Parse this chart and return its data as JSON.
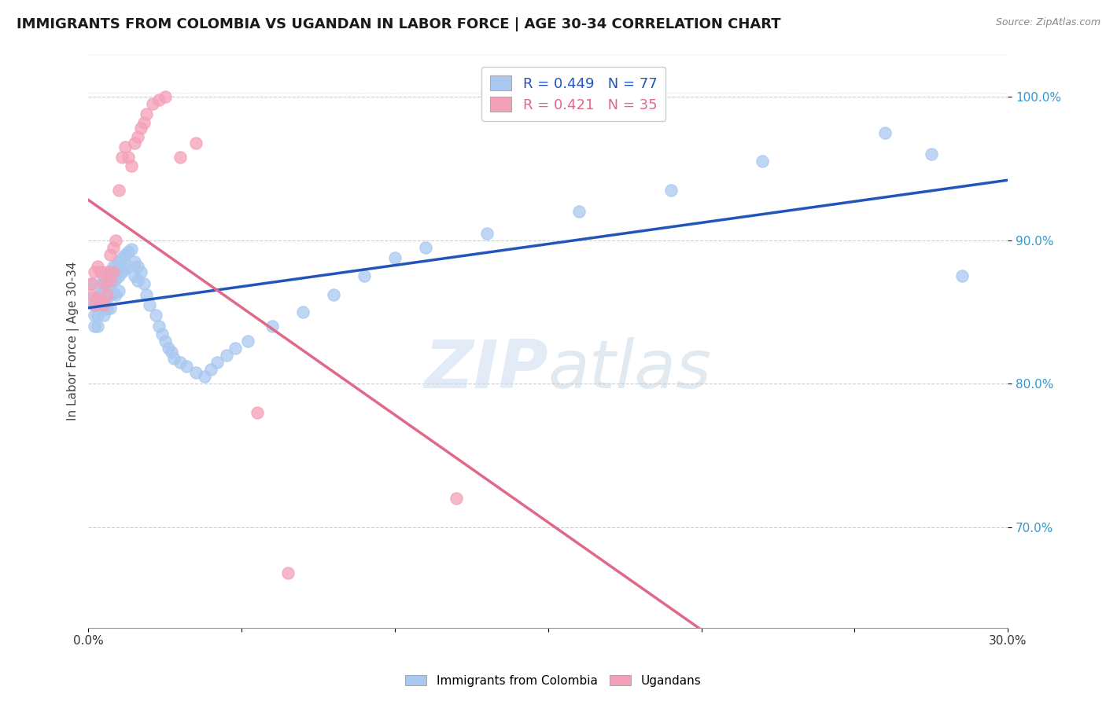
{
  "title": "IMMIGRANTS FROM COLOMBIA VS UGANDAN IN LABOR FORCE | AGE 30-34 CORRELATION CHART",
  "source": "Source: ZipAtlas.com",
  "ylabel": "In Labor Force | Age 30-34",
  "xlim": [
    0.0,
    0.3
  ],
  "ylim": [
    0.63,
    1.03
  ],
  "xticks": [
    0.0,
    0.05,
    0.1,
    0.15,
    0.2,
    0.25,
    0.3
  ],
  "yticks": [
    0.7,
    0.8,
    0.9,
    1.0
  ],
  "ytick_labels": [
    "70.0%",
    "80.0%",
    "90.0%",
    "100.0%"
  ],
  "blue_R": 0.449,
  "blue_N": 77,
  "pink_R": 0.421,
  "pink_N": 35,
  "blue_color": "#a8c8f0",
  "pink_color": "#f4a0b8",
  "blue_line_color": "#2255bb",
  "pink_line_color": "#e06888",
  "legend_label_blue": "Immigrants from Colombia",
  "legend_label_pink": "Ugandans",
  "watermark_zip": "ZIP",
  "watermark_atlas": "atlas",
  "blue_x": [
    0.001,
    0.001,
    0.002,
    0.002,
    0.002,
    0.003,
    0.003,
    0.003,
    0.003,
    0.004,
    0.004,
    0.004,
    0.005,
    0.005,
    0.005,
    0.005,
    0.006,
    0.006,
    0.006,
    0.006,
    0.007,
    0.007,
    0.007,
    0.007,
    0.008,
    0.008,
    0.008,
    0.009,
    0.009,
    0.009,
    0.01,
    0.01,
    0.01,
    0.011,
    0.011,
    0.012,
    0.012,
    0.013,
    0.013,
    0.014,
    0.015,
    0.015,
    0.016,
    0.016,
    0.017,
    0.018,
    0.019,
    0.02,
    0.022,
    0.023,
    0.024,
    0.025,
    0.026,
    0.027,
    0.028,
    0.03,
    0.032,
    0.035,
    0.038,
    0.04,
    0.042,
    0.045,
    0.048,
    0.052,
    0.06,
    0.07,
    0.08,
    0.09,
    0.1,
    0.11,
    0.13,
    0.16,
    0.19,
    0.22,
    0.26,
    0.275,
    0.285
  ],
  "blue_y": [
    0.87,
    0.86,
    0.855,
    0.848,
    0.84,
    0.86,
    0.855,
    0.848,
    0.84,
    0.87,
    0.863,
    0.855,
    0.872,
    0.865,
    0.858,
    0.848,
    0.875,
    0.868,
    0.86,
    0.852,
    0.878,
    0.87,
    0.862,
    0.853,
    0.882,
    0.872,
    0.863,
    0.882,
    0.873,
    0.862,
    0.885,
    0.875,
    0.865,
    0.888,
    0.878,
    0.89,
    0.88,
    0.892,
    0.882,
    0.894,
    0.885,
    0.875,
    0.882,
    0.872,
    0.878,
    0.87,
    0.862,
    0.855,
    0.848,
    0.84,
    0.835,
    0.83,
    0.825,
    0.822,
    0.818,
    0.815,
    0.812,
    0.808,
    0.805,
    0.81,
    0.815,
    0.82,
    0.825,
    0.83,
    0.84,
    0.85,
    0.862,
    0.875,
    0.888,
    0.895,
    0.905,
    0.92,
    0.935,
    0.955,
    0.975,
    0.96,
    0.875
  ],
  "pink_x": [
    0.001,
    0.001,
    0.002,
    0.002,
    0.003,
    0.003,
    0.004,
    0.004,
    0.005,
    0.005,
    0.006,
    0.006,
    0.007,
    0.007,
    0.008,
    0.008,
    0.009,
    0.01,
    0.011,
    0.012,
    0.013,
    0.014,
    0.015,
    0.016,
    0.017,
    0.018,
    0.019,
    0.021,
    0.023,
    0.025,
    0.03,
    0.035,
    0.055,
    0.065,
    0.12
  ],
  "pink_y": [
    0.87,
    0.862,
    0.878,
    0.855,
    0.882,
    0.86,
    0.878,
    0.858,
    0.87,
    0.855,
    0.878,
    0.862,
    0.89,
    0.872,
    0.895,
    0.878,
    0.9,
    0.935,
    0.958,
    0.965,
    0.958,
    0.952,
    0.968,
    0.972,
    0.978,
    0.982,
    0.988,
    0.995,
    0.998,
    1.0,
    0.958,
    0.968,
    0.78,
    0.668,
    0.72
  ]
}
